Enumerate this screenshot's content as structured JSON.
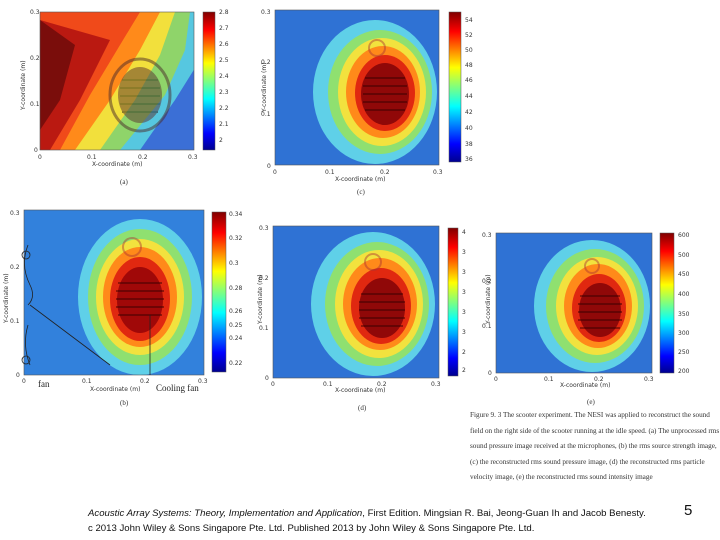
{
  "panels": [
    {
      "id": "a",
      "label": "(a)",
      "x_axis_label": "X-coordinate (m)",
      "y_axis_label": "Y-coordinate (m)",
      "x_ticks": [
        "0",
        "0.1",
        "0.2",
        "0.3"
      ],
      "y_ticks": [
        "0.3",
        "0.2",
        "0.1",
        "0"
      ],
      "colorbar_ticks": [
        "2.8",
        "2.7",
        "2.6",
        "2.5",
        "2.4",
        "2.3",
        "2.2",
        "2.1",
        "2"
      ]
    },
    {
      "id": "c",
      "label": "(c)",
      "x_axis_label": "X-coordinate (m)",
      "y_axis_label": "Y-coordinate (m)",
      "x_ticks": [
        "0",
        "0.1",
        "0.2",
        "0.3"
      ],
      "y_ticks": [
        "0.3",
        "0.2",
        "0.1",
        "0"
      ],
      "colorbar_ticks": [
        "54",
        "52",
        "50",
        "48",
        "46",
        "44",
        "42",
        "40",
        "38",
        "36"
      ]
    },
    {
      "id": "b",
      "label": "(b)",
      "x_axis_label": "X-coordinate (m)",
      "y_axis_label": "Y-coordinate (m)",
      "x_ticks": [
        "0",
        "0.1",
        "0.2",
        "0.3"
      ],
      "y_ticks": [
        "0.3",
        "0.2",
        "0.1",
        "0"
      ],
      "colorbar_ticks": [
        "0.34",
        "0.32",
        "0.3",
        "0.28",
        "0.26",
        "0.25",
        "0.24",
        "0.22"
      ],
      "annotations": {
        "fan": "fan",
        "cooling_fan": "Cooling fan"
      }
    },
    {
      "id": "d",
      "label": "(d)",
      "x_axis_label": "X-coordinate (m)",
      "y_axis_label": "Y-coordinate (m)",
      "x_ticks": [
        "0",
        "0.1",
        "0.2",
        "0.3"
      ],
      "y_ticks": [
        "0.3",
        "0.2",
        "0.1",
        "0"
      ],
      "colorbar_ticks": [
        "4",
        "3",
        "3",
        "3",
        "3",
        "3",
        "2",
        "2"
      ]
    },
    {
      "id": "e",
      "label": "(e)",
      "x_axis_label": "X-coordinate (m)",
      "y_axis_label": "Y-coordinate (m)",
      "x_ticks": [
        "0",
        "0.1",
        "0.2",
        "0.3"
      ],
      "y_ticks": [
        "0.3",
        "0.2",
        "0.1",
        "0"
      ],
      "colorbar_ticks": [
        "600",
        "500",
        "450",
        "400",
        "350",
        "300",
        "250",
        "200"
      ]
    }
  ],
  "caption": {
    "figure_label": "Figure 9. 3",
    "text": "The scooter experiment.   The NESI was applied to reconstruct the sound field on the right side of the scooter running at the idle speed.   (a) The unprocessed rms sound pressure image received at the microphones, (b) the rms source strength image, (c) the reconstructed rms sound pressure image, (d) the reconstructed rms particle velocity image, (e) the reconstructed rms sound intensity image"
  },
  "footer": {
    "book_title": "Acoustic Array Systems: Theory, Implementation and Application",
    "line1_rest": ", First Edition. Mingsian R. Bai, Jeong-Guan Ih and Jacob Benesty.",
    "line2": "c 2013 John Wiley & Sons Singapore Pte. Ltd. Published 2013 by John Wiley & Sons Singapore Pte. Ltd."
  },
  "page_number": "5",
  "colors": {
    "jet_red": "#a00000",
    "jet_orange": "#ff6a00",
    "jet_yellow": "#f4e13a",
    "jet_green": "#7ed957",
    "jet_cyan": "#46c8e8",
    "jet_blue": "#1f5fd6"
  }
}
